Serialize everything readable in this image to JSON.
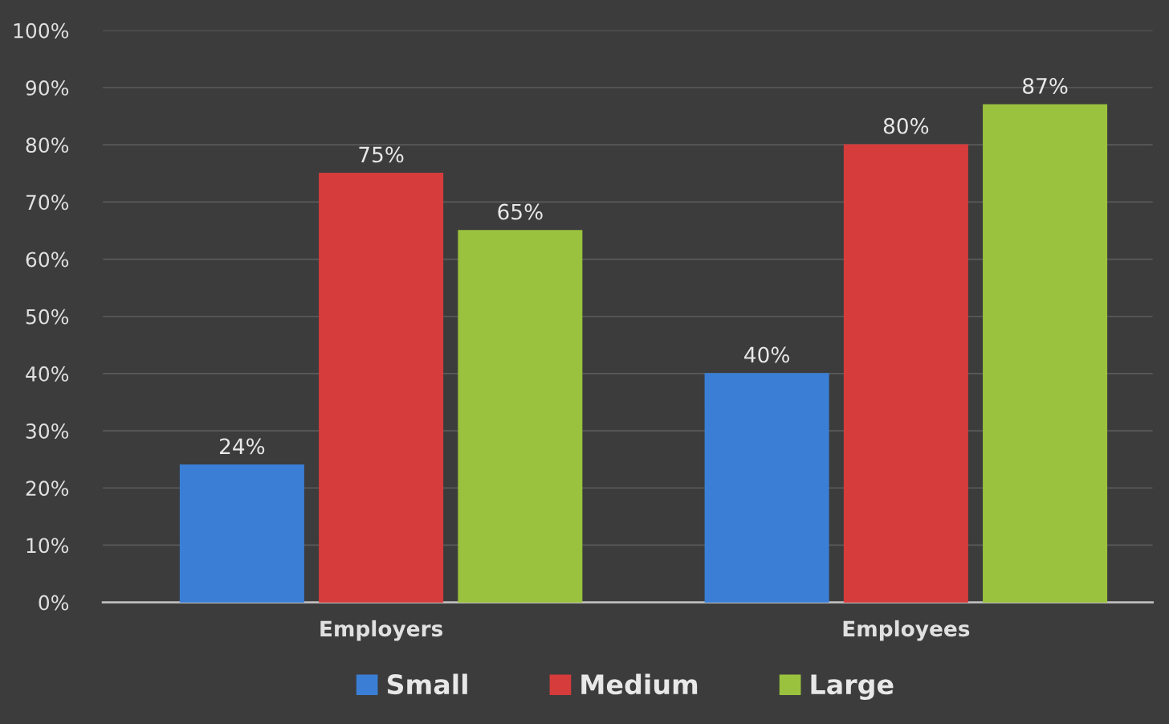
{
  "chart_data": {
    "type": "bar",
    "categories": [
      "Employers",
      "Employees"
    ],
    "series": [
      {
        "name": "Small",
        "color": "#3a7fd5",
        "values": [
          24,
          40
        ],
        "value_labels": [
          "24%",
          "40%"
        ]
      },
      {
        "name": "Medium",
        "color": "#d63c3c",
        "values": [
          75,
          80
        ],
        "value_labels": [
          "75%",
          "80%"
        ]
      },
      {
        "name": "Large",
        "color": "#9bc23e",
        "values": [
          65,
          87
        ],
        "value_labels": [
          "65%",
          "87%"
        ]
      }
    ],
    "ylim": [
      0,
      100
    ],
    "yticks": [
      {
        "value": 0,
        "label": "0%"
      },
      {
        "value": 10,
        "label": "10%"
      },
      {
        "value": 20,
        "label": "20%"
      },
      {
        "value": 30,
        "label": "30%"
      },
      {
        "value": 40,
        "label": "40%"
      },
      {
        "value": 50,
        "label": "50%"
      },
      {
        "value": 60,
        "label": "60%"
      },
      {
        "value": 70,
        "label": "70%"
      },
      {
        "value": 80,
        "label": "80%"
      },
      {
        "value": 90,
        "label": "90%"
      },
      {
        "value": 100,
        "label": "100%"
      }
    ],
    "grid": "y",
    "legend": "bottom"
  }
}
